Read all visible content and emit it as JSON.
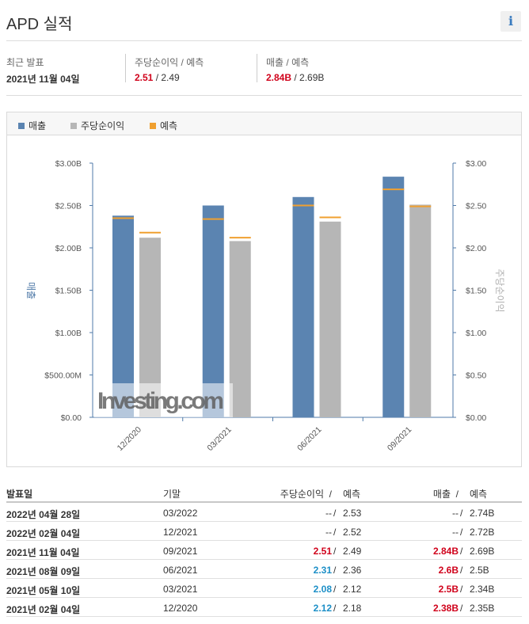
{
  "header": {
    "title": "APD 실적",
    "info_icon": "i"
  },
  "summary": {
    "latest_label": "최근 발표",
    "latest_date": "2021년 11월 04일",
    "eps_label": "주당순이익  /  예측",
    "eps_actual": "2.51",
    "eps_slash": " / ",
    "eps_forecast": "2.49",
    "rev_label": "매출  /  예측",
    "rev_actual": "2.84B",
    "rev_slash": " / ",
    "rev_forecast": "2.69B"
  },
  "legend": {
    "revenue": "매출",
    "eps": "주당순이익",
    "forecast": "예측"
  },
  "colors": {
    "revenue": "#5b84b1",
    "eps": "#b6b6b6",
    "forecast": "#f0a030"
  },
  "chart_data": {
    "type": "bar",
    "categories": [
      "12/2020",
      "03/2021",
      "06/2021",
      "09/2021"
    ],
    "series": [
      {
        "name": "매출",
        "axis": "left",
        "values": [
          2.38,
          2.5,
          2.6,
          2.84
        ],
        "forecast": [
          2.35,
          2.34,
          2.5,
          2.69
        ]
      },
      {
        "name": "주당순이익",
        "axis": "right",
        "values": [
          2.12,
          2.08,
          2.31,
          2.51
        ],
        "forecast": [
          2.18,
          2.12,
          2.36,
          2.49
        ]
      }
    ],
    "y_left": {
      "label": "매출",
      "range": [
        0,
        3.0
      ],
      "ticks": [
        "$0.00",
        "$500.00M",
        "$1.00B",
        "$1.50B",
        "$2.00B",
        "$2.50B",
        "$3.00B"
      ]
    },
    "y_right": {
      "label": "주당순이익",
      "range": [
        0,
        3.0
      ],
      "ticks": [
        "$0.00",
        "$0.50",
        "$1.00",
        "$1.50",
        "$2.00",
        "$2.50",
        "$3.00"
      ]
    },
    "watermark": "Investing.com"
  },
  "table": {
    "headers": {
      "date": "발표일",
      "period": "기말",
      "eps": "주당순이익  /",
      "eps_f": "예측",
      "rev": "매출  /",
      "rev_f": "예측"
    },
    "rows": [
      {
        "date": "2022년 04월 28일",
        "period": "03/2022",
        "eps": "--",
        "eps_f": "2.53",
        "rev": "--",
        "rev_f": "2.74B",
        "eps_style": "",
        "rev_style": ""
      },
      {
        "date": "2022년 02월 04일",
        "period": "12/2021",
        "eps": "--",
        "eps_f": "2.52",
        "rev": "--",
        "rev_f": "2.72B",
        "eps_style": "",
        "rev_style": ""
      },
      {
        "date": "2021년 11월 04일",
        "period": "09/2021",
        "eps": "2.51",
        "eps_f": "2.49",
        "rev": "2.84B",
        "rev_f": "2.69B",
        "eps_style": "red",
        "rev_style": "red"
      },
      {
        "date": "2021년 08월 09일",
        "period": "06/2021",
        "eps": "2.31",
        "eps_f": "2.36",
        "rev": "2.6B",
        "rev_f": "2.5B",
        "eps_style": "blue",
        "rev_style": "red"
      },
      {
        "date": "2021년 05월 10일",
        "period": "03/2021",
        "eps": "2.08",
        "eps_f": "2.12",
        "rev": "2.5B",
        "rev_f": "2.34B",
        "eps_style": "blue",
        "rev_style": "red"
      },
      {
        "date": "2021년 02월 04일",
        "period": "12/2020",
        "eps": "2.12",
        "eps_f": "2.18",
        "rev": "2.38B",
        "rev_f": "2.35B",
        "eps_style": "blue",
        "rev_style": "red"
      }
    ],
    "slash": "/"
  }
}
